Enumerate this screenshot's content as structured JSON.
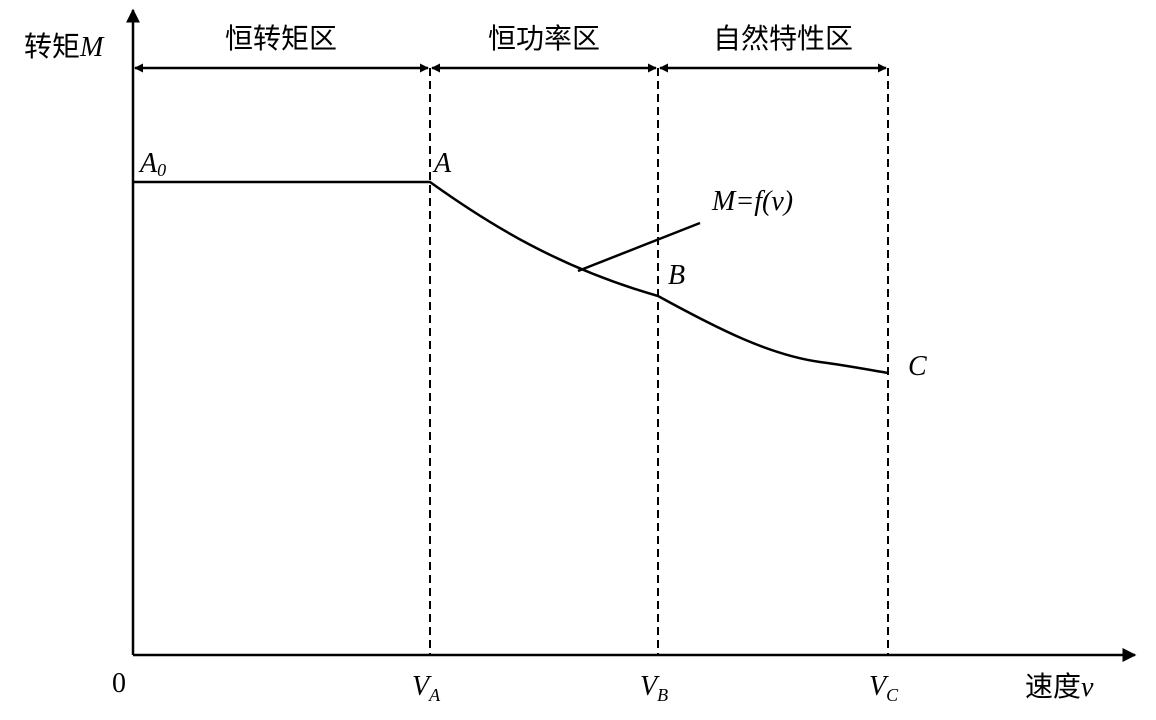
{
  "axes": {
    "y_label": {
      "text": "转矩",
      "var": "M"
    },
    "x_label": {
      "text": "速度",
      "var": "v"
    },
    "origin": "0",
    "x_marks": [
      {
        "main": "V",
        "sub": "A"
      },
      {
        "main": "V",
        "sub": "B"
      },
      {
        "main": "V",
        "sub": "C"
      }
    ]
  },
  "regions": [
    "恒转矩区",
    "恒功率区",
    "自然特性区"
  ],
  "points": [
    {
      "main": "A",
      "sub": "0"
    },
    {
      "main": "A"
    },
    {
      "main": "B"
    },
    {
      "main": "C"
    }
  ],
  "curve_label": "M=f(v)"
}
